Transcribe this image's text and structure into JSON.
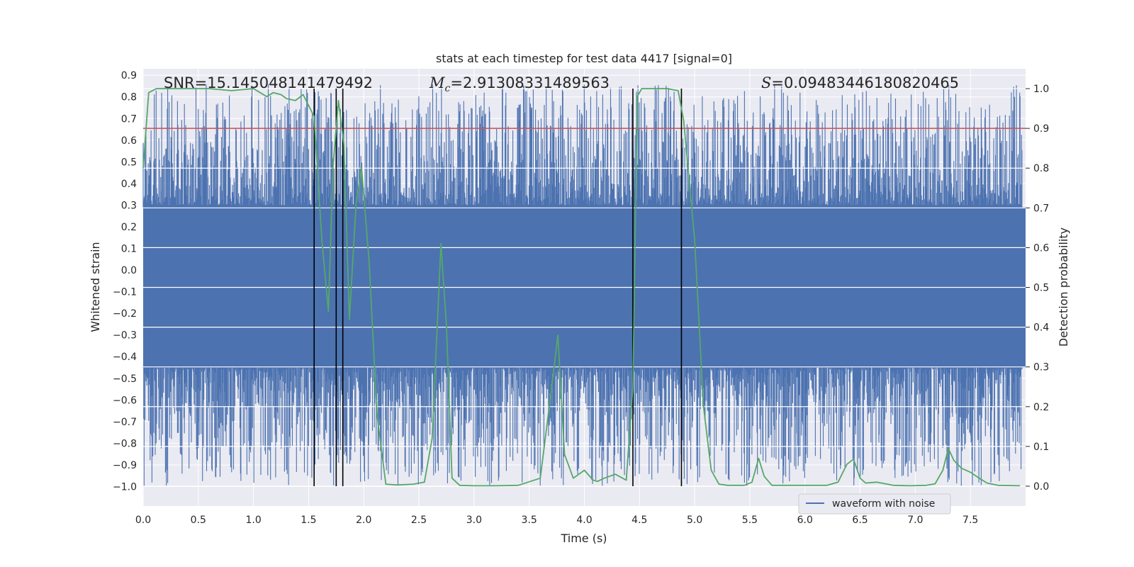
{
  "chart_data": {
    "type": "line",
    "title": "stats at each timestep for test data 4417 [signal=0]",
    "xlabel": "Time (s)",
    "ylabel": "Whitened strain",
    "y2label": "Detection probability",
    "xlim": [
      0.0,
      8.0
    ],
    "ylim": [
      -1.09,
      0.93
    ],
    "y2lim": [
      -0.05,
      1.05
    ],
    "xticks": [
      "0.0",
      "0.5",
      "1.0",
      "1.5",
      "2.0",
      "2.5",
      "3.0",
      "3.5",
      "4.0",
      "4.5",
      "5.0",
      "5.5",
      "6.0",
      "6.5",
      "7.0",
      "7.5"
    ],
    "yticks": [
      "0.9",
      "0.8",
      "0.7",
      "0.6",
      "0.5",
      "0.4",
      "0.3",
      "0.2",
      "0.1",
      "0.0",
      "−0.1",
      "−0.2",
      "−0.3",
      "−0.4",
      "−0.5",
      "−0.6",
      "−0.7",
      "−0.8",
      "−0.9",
      "−1.0"
    ],
    "y2ticks": [
      "1.0",
      "0.9",
      "0.8",
      "0.7",
      "0.6",
      "0.5",
      "0.4",
      "0.3",
      "0.2",
      "0.1",
      "0.0"
    ],
    "grid": true,
    "legend_position": "lower-right",
    "annotations": {
      "snr": "SNR=15.145048141479492",
      "mc_symbol": "M",
      "mc_sub": "c",
      "mc_value": "=2.91308331489563",
      "s_symbol": "S",
      "s_value": "=0.09483446180820465"
    },
    "series": [
      {
        "name": "waveform with noise",
        "color": "#4c72b0",
        "axis": "left",
        "style": "noise-band",
        "band": [
          -0.45,
          0.29
        ],
        "spike_upper_range": [
          0.3,
          0.86
        ],
        "spike_lower_range": [
          -1.0,
          -0.45
        ]
      },
      {
        "color": "#55a868",
        "axis": "right",
        "x": [
          0.0,
          0.05,
          0.12,
          0.2,
          0.3,
          0.45,
          0.6,
          0.8,
          1.0,
          1.12,
          1.18,
          1.25,
          1.3,
          1.38,
          1.45,
          1.55,
          1.62,
          1.68,
          1.72,
          1.77,
          1.82,
          1.87,
          1.93,
          1.98,
          2.05,
          2.12,
          2.2,
          2.3,
          2.45,
          2.55,
          2.62,
          2.7,
          2.75,
          2.8,
          2.87,
          3.0,
          3.2,
          3.4,
          3.6,
          3.7,
          3.76,
          3.82,
          3.9,
          4.0,
          4.08,
          4.12,
          4.18,
          4.28,
          4.38,
          4.44,
          4.48,
          4.52,
          4.6,
          4.75,
          4.85,
          4.9,
          5.0,
          5.08,
          5.15,
          5.22,
          5.3,
          5.45,
          5.52,
          5.58,
          5.63,
          5.7,
          5.8,
          5.9,
          6.0,
          6.2,
          6.3,
          6.38,
          6.44,
          6.5,
          6.55,
          6.65,
          6.8,
          6.95,
          7.1,
          7.18,
          7.25,
          7.3,
          7.35,
          7.42,
          7.5,
          7.58,
          7.65,
          7.75,
          7.95
        ],
        "y": [
          0.8,
          0.99,
          1.0,
          1.0,
          1.0,
          1.0,
          1.0,
          0.995,
          1.0,
          0.98,
          0.99,
          0.985,
          0.975,
          0.97,
          0.985,
          0.93,
          0.62,
          0.44,
          0.8,
          0.97,
          0.86,
          0.42,
          0.71,
          0.8,
          0.56,
          0.18,
          0.005,
          0.003,
          0.005,
          0.01,
          0.12,
          0.61,
          0.4,
          0.02,
          0.002,
          0.001,
          0.001,
          0.002,
          0.02,
          0.24,
          0.38,
          0.08,
          0.02,
          0.04,
          0.015,
          0.012,
          0.02,
          0.03,
          0.015,
          0.25,
          0.98,
          1.0,
          1.0,
          1.0,
          0.995,
          0.92,
          0.62,
          0.2,
          0.04,
          0.005,
          0.002,
          0.002,
          0.01,
          0.07,
          0.025,
          0.002,
          0.002,
          0.002,
          0.002,
          0.002,
          0.01,
          0.055,
          0.068,
          0.02,
          0.008,
          0.01,
          0.002,
          0.001,
          0.002,
          0.006,
          0.04,
          0.095,
          0.065,
          0.045,
          0.035,
          0.02,
          0.008,
          0.002,
          0.001
        ]
      }
    ],
    "hlines": [
      {
        "axis": "right",
        "y": 0.9,
        "color": "#c44e52"
      }
    ],
    "vlines": [
      {
        "x": 1.55,
        "ymin": 0.0,
        "ymax": 1.0,
        "color": "#000000"
      },
      {
        "x": 1.75,
        "ymin": 0.0,
        "ymax": 1.0,
        "color": "#000000"
      },
      {
        "x": 1.81,
        "ymin": 0.0,
        "ymax": 1.0,
        "color": "#000000"
      },
      {
        "x": 4.44,
        "ymin": 0.0,
        "ymax": 1.0,
        "color": "#000000"
      },
      {
        "x": 4.88,
        "ymin": 0.0,
        "ymax": 1.0,
        "color": "#000000"
      }
    ]
  }
}
